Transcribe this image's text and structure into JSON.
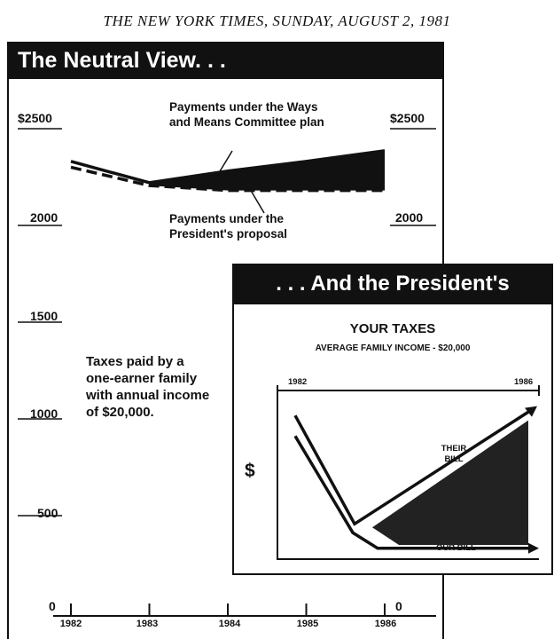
{
  "masthead": "THE NEW YORK TIMES, SUNDAY, AUGUST 2, 1981",
  "left_panel": {
    "title": "The Neutral View. . .",
    "y_ticks_left": [
      "$2500",
      "2000",
      "1500",
      "1000",
      "500",
      "0"
    ],
    "y_ticks_right": [
      "$2500",
      "2000",
      "0"
    ],
    "x_ticks": [
      "1982",
      "1983",
      "1984",
      "1985",
      "1986"
    ],
    "annotation_ways_means": "Payments under the Ways and Means Committee plan",
    "annotation_president": "Payments under the President's proposal",
    "note": "Taxes paid by a one-earner family with annual income of $20,000."
  },
  "right_panel": {
    "title": ". . . And the President's",
    "chart_title": "YOUR TAXES",
    "subtitle": "AVERAGE FAMILY INCOME - $20,000",
    "year_start": "1982",
    "year_end": "1986",
    "y_symbol": "$",
    "label_their_bill": "THEIR BILL",
    "label_our_bill": "OUR BILL"
  },
  "chart_data": [
    {
      "type": "area",
      "title": "The Neutral View. . .",
      "x": [
        1982,
        1983,
        1984,
        1985,
        1986
      ],
      "ylim": [
        0,
        2500
      ],
      "y_unit": "$",
      "series": [
        {
          "name": "Payments under the Ways and Means Committee plan",
          "values": [
            2285,
            2175,
            2235,
            2285,
            2340
          ]
        },
        {
          "name": "Payments under the President's proposal",
          "values": [
            2255,
            2160,
            2135,
            2135,
            2135
          ]
        }
      ],
      "fill_between": "shaded region between the two series from 1983 to 1986",
      "annotation": "Taxes paid by a one-earner family with annual income of $20,000."
    },
    {
      "type": "line",
      "title": "YOUR TAXES",
      "subtitle": "AVERAGE FAMILY INCOME - $20,000",
      "x_labels": [
        "1982",
        "1986"
      ],
      "series": [
        {
          "name": "THEIR BILL",
          "values": [
            0.92,
            0.18,
            0.96
          ]
        },
        {
          "name": "OUR BILL",
          "values": [
            0.78,
            0.12,
            0.05
          ]
        }
      ],
      "value_scale": "relative, no printed axis values",
      "grid": false
    }
  ]
}
